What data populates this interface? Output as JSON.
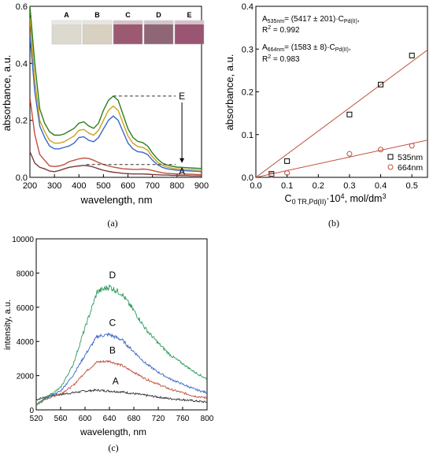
{
  "panels": {
    "a": {
      "label": "(a)"
    },
    "b": {
      "label": "(b)"
    },
    "c": {
      "label": "(c)"
    }
  },
  "chart_data": [
    {
      "panel": "a",
      "type": "line",
      "xlabel": "wavelength, nm",
      "ylabel": "absorbance, a.u.",
      "xlim": [
        200,
        900
      ],
      "ylim": [
        0,
        0.6
      ],
      "xticks": [
        200,
        300,
        400,
        500,
        600,
        700,
        800,
        900
      ],
      "yticks": [
        0.0,
        0.2,
        0.4,
        0.6
      ],
      "vials": [
        {
          "label": "A",
          "color": "#dcd9cf"
        },
        {
          "label": "B",
          "color": "#d8d0c0"
        },
        {
          "label": "C",
          "color": "#9b5a72"
        },
        {
          "label": "D",
          "color": "#8e6676"
        },
        {
          "label": "E",
          "color": "#9a5573"
        }
      ],
      "annotations": [
        {
          "text": "E",
          "x": 820,
          "y": 0.285
        },
        {
          "text": "A",
          "x": 820,
          "y": 0.045
        }
      ],
      "series": [
        {
          "color": "#7a3b3b",
          "x": [
            200,
            220,
            240,
            260,
            280,
            300,
            320,
            340,
            360,
            380,
            400,
            420,
            440,
            460,
            480,
            500,
            520,
            540,
            560,
            580,
            600,
            620,
            640,
            660,
            680,
            700,
            720,
            740,
            760,
            780,
            800,
            820,
            840,
            860,
            880,
            900
          ],
          "y": [
            0.09,
            0.05,
            0.035,
            0.03,
            0.022,
            0.02,
            0.024,
            0.03,
            0.035,
            0.038,
            0.04,
            0.042,
            0.04,
            0.036,
            0.03,
            0.025,
            0.021,
            0.018,
            0.016,
            0.014,
            0.013,
            0.012,
            0.012,
            0.012,
            0.011,
            0.01,
            0.009,
            0.008,
            0.008,
            0.007,
            0.007,
            0.006,
            0.006,
            0.005,
            0.005,
            0.005
          ]
        },
        {
          "color": "#c0503c",
          "x": [
            200,
            220,
            240,
            260,
            280,
            300,
            320,
            340,
            360,
            380,
            400,
            420,
            440,
            460,
            480,
            500,
            520,
            540,
            560,
            580,
            600,
            620,
            640,
            660,
            680,
            700,
            720,
            740,
            760,
            780,
            800,
            820,
            840,
            860,
            880,
            900
          ],
          "y": [
            0.28,
            0.15,
            0.08,
            0.06,
            0.04,
            0.038,
            0.04,
            0.045,
            0.055,
            0.06,
            0.065,
            0.068,
            0.066,
            0.06,
            0.052,
            0.045,
            0.04,
            0.036,
            0.033,
            0.03,
            0.029,
            0.028,
            0.028,
            0.029,
            0.028,
            0.024,
            0.02,
            0.016,
            0.014,
            0.013,
            0.012,
            0.012,
            0.011,
            0.011,
            0.01,
            0.01
          ]
        },
        {
          "color": "#3a67c8",
          "x": [
            200,
            220,
            240,
            260,
            280,
            300,
            320,
            340,
            360,
            380,
            400,
            420,
            440,
            460,
            480,
            500,
            520,
            540,
            560,
            580,
            600,
            620,
            640,
            660,
            680,
            700,
            720,
            740,
            760,
            780,
            800,
            820,
            840,
            860,
            880,
            900
          ],
          "y": [
            0.5,
            0.3,
            0.18,
            0.14,
            0.11,
            0.1,
            0.1,
            0.105,
            0.11,
            0.12,
            0.14,
            0.142,
            0.13,
            0.125,
            0.14,
            0.17,
            0.2,
            0.215,
            0.2,
            0.16,
            0.12,
            0.1,
            0.09,
            0.088,
            0.08,
            0.06,
            0.045,
            0.035,
            0.03,
            0.027,
            0.025,
            0.024,
            0.023,
            0.022,
            0.021,
            0.02
          ]
        },
        {
          "color": "#c9a21e",
          "x": [
            200,
            220,
            240,
            260,
            280,
            300,
            320,
            340,
            360,
            380,
            400,
            420,
            440,
            460,
            480,
            500,
            520,
            540,
            560,
            580,
            600,
            620,
            640,
            660,
            680,
            700,
            720,
            740,
            760,
            780,
            800,
            820,
            840,
            860,
            880,
            900
          ],
          "y": [
            0.56,
            0.34,
            0.2,
            0.16,
            0.13,
            0.12,
            0.12,
            0.125,
            0.135,
            0.145,
            0.165,
            0.168,
            0.155,
            0.148,
            0.165,
            0.2,
            0.235,
            0.25,
            0.235,
            0.19,
            0.145,
            0.12,
            0.108,
            0.105,
            0.095,
            0.072,
            0.054,
            0.042,
            0.036,
            0.032,
            0.03,
            0.029,
            0.028,
            0.027,
            0.026,
            0.025
          ]
        },
        {
          "color": "#2e7d1e",
          "x": [
            200,
            220,
            240,
            260,
            280,
            300,
            320,
            340,
            360,
            380,
            400,
            420,
            440,
            460,
            480,
            500,
            520,
            540,
            560,
            580,
            600,
            620,
            640,
            660,
            680,
            700,
            720,
            740,
            760,
            780,
            800,
            820,
            840,
            860,
            880,
            900
          ],
          "y": [
            0.6,
            0.4,
            0.24,
            0.19,
            0.16,
            0.148,
            0.148,
            0.152,
            0.162,
            0.172,
            0.19,
            0.195,
            0.18,
            0.172,
            0.19,
            0.235,
            0.27,
            0.285,
            0.27,
            0.22,
            0.17,
            0.14,
            0.126,
            0.122,
            0.11,
            0.085,
            0.065,
            0.05,
            0.043,
            0.039,
            0.036,
            0.035,
            0.034,
            0.033,
            0.032,
            0.031
          ]
        }
      ]
    },
    {
      "panel": "b",
      "type": "scatter",
      "xlabel": "C0 TR,Pd(II)·10⁴, mol/dm³",
      "ylabel": "absorbance, a.u.",
      "xlim": [
        0.0,
        0.55
      ],
      "ylim": [
        0.0,
        0.4
      ],
      "xticks": [
        0.0,
        0.1,
        0.2,
        0.3,
        0.4,
        0.5
      ],
      "yticks": [
        0.0,
        0.1,
        0.2,
        0.3,
        0.4
      ],
      "equations": [
        {
          "line1": "A535nm= (5417 ± 201)·CPd(II),",
          "line2": "R² = 0.992"
        },
        {
          "line1": "A664nm= (1583 ± 8)·CPd(II),",
          "line2": "R² = 0.983"
        }
      ],
      "legend": {
        "position": "bottom-right"
      },
      "series": [
        {
          "name": "535nm",
          "marker": "square",
          "color": "#000000",
          "line_color": "#c0503c",
          "slope": 0.5417,
          "x": [
            0.05,
            0.1,
            0.3,
            0.4,
            0.5
          ],
          "y": [
            0.008,
            0.038,
            0.147,
            0.217,
            0.285
          ]
        },
        {
          "name": "664nm",
          "marker": "circle",
          "color": "#c0503c",
          "line_color": "#c0503c",
          "slope": 0.1583,
          "x": [
            0.05,
            0.1,
            0.3,
            0.4,
            0.5
          ],
          "y": [
            0.005,
            0.01,
            0.055,
            0.065,
            0.074
          ]
        }
      ]
    },
    {
      "panel": "c",
      "type": "line",
      "xlabel": "wavelength, nm",
      "ylabel": "intensity, a.u.",
      "xlim": [
        520,
        800
      ],
      "ylim": [
        0,
        10000
      ],
      "xticks": [
        520,
        560,
        600,
        640,
        680,
        720,
        760,
        800
      ],
      "yticks": [
        0,
        2000,
        4000,
        6000,
        8000,
        10000
      ],
      "annotations": [
        {
          "text": "D",
          "x": 645,
          "y": 7700
        },
        {
          "text": "C",
          "x": 645,
          "y": 4900
        },
        {
          "text": "B",
          "x": 645,
          "y": 3300
        },
        {
          "text": "A",
          "x": 650,
          "y": 1500
        }
      ],
      "series": [
        {
          "color": "#333333",
          "x": [
            520,
            540,
            560,
            580,
            600,
            620,
            640,
            660,
            680,
            700,
            720,
            740,
            760,
            780,
            800
          ],
          "y": [
            600,
            800,
            900,
            1000,
            1100,
            1150,
            1100,
            1050,
            950,
            850,
            750,
            650,
            600,
            520,
            450
          ]
        },
        {
          "color": "#c0503c",
          "x": [
            520,
            540,
            560,
            580,
            600,
            620,
            640,
            660,
            680,
            700,
            720,
            740,
            760,
            780,
            800
          ],
          "y": [
            300,
            700,
            950,
            1400,
            2200,
            2800,
            2850,
            2600,
            2200,
            1800,
            1500,
            1200,
            1000,
            800,
            700
          ]
        },
        {
          "color": "#3a67c8",
          "x": [
            520,
            540,
            560,
            580,
            600,
            620,
            640,
            660,
            680,
            700,
            720,
            740,
            760,
            780,
            800
          ],
          "y": [
            300,
            750,
            1100,
            2000,
            3200,
            4300,
            4400,
            4100,
            3400,
            2700,
            2200,
            1800,
            1500,
            1200,
            1000
          ]
        },
        {
          "color": "#2e9a5e",
          "x": [
            520,
            540,
            560,
            580,
            600,
            620,
            640,
            660,
            680,
            700,
            720,
            740,
            760,
            780,
            800
          ],
          "y": [
            300,
            800,
            1300,
            2600,
            4800,
            6900,
            7200,
            6800,
            5800,
            4700,
            3900,
            3200,
            2700,
            2200,
            1800
          ]
        }
      ]
    }
  ]
}
